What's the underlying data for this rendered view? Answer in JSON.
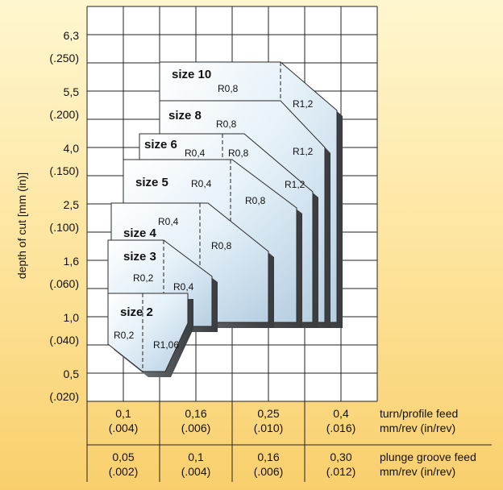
{
  "chart_data": {
    "type": "area",
    "ylabel": "depth of cut [mm (in)]",
    "y_ticks": [
      {
        "top": "6,3",
        "bottom": "(.250)"
      },
      {
        "top": "5,5",
        "bottom": "(.200)"
      },
      {
        "top": "4,0",
        "bottom": "(.150)"
      },
      {
        "top": "2,5",
        "bottom": "(.100)"
      },
      {
        "top": "1,6",
        "bottom": "(.060)"
      },
      {
        "top": "1,0",
        "bottom": "(.040)"
      },
      {
        "top": "0,5",
        "bottom": "(.020)"
      }
    ],
    "x_rows": [
      {
        "label_line1": "turn/profile feed",
        "label_line2": "mm/rev (in/rev)",
        "cells": [
          [
            "0,1",
            "(.004)"
          ],
          [
            "0,16",
            "(.006)"
          ],
          [
            "0,25",
            "(.010)"
          ],
          [
            "0,4",
            "(.016)"
          ]
        ]
      },
      {
        "label_line1": "plunge groove feed",
        "label_line2": "mm/rev (in/rev)",
        "cells": [
          [
            "0,05",
            "(.002)"
          ],
          [
            "0,1",
            "(.004)"
          ],
          [
            "0,16",
            "(.006)"
          ],
          [
            "0,30",
            "(.012)"
          ]
        ]
      }
    ],
    "series": [
      {
        "name": "size 10",
        "radii": [
          "R0,8",
          "R1,2"
        ]
      },
      {
        "name": "size 8",
        "radii": [
          "R0,8",
          "R1,2"
        ]
      },
      {
        "name": "size 6",
        "radii": [
          "R0,4",
          "R0,8",
          "R1,2"
        ]
      },
      {
        "name": "size 5",
        "radii": [
          "R0,4",
          "R0,8"
        ]
      },
      {
        "name": "size 4",
        "radii": [
          "R0,4",
          "R0,8"
        ]
      },
      {
        "name": "size 3",
        "radii": [
          "R0,2",
          "R0,4"
        ]
      },
      {
        "name": "size 2",
        "radii": [
          "R0,2",
          "R1,06"
        ]
      }
    ]
  }
}
